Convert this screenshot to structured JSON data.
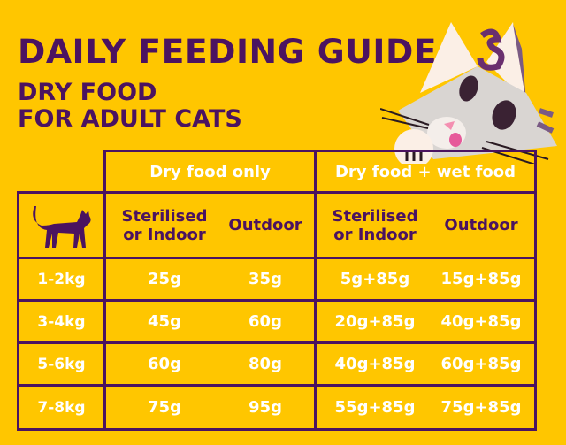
{
  "title": "DAILY FEEDING GUIDE",
  "subtitle_line1": "DRY FOOD",
  "subtitle_line2": "FOR ADULT CATS",
  "colors": {
    "background": "#FFC600",
    "accent": "#4B1360",
    "value_text": "#FFFFFF"
  },
  "icons": {
    "header": "cat-silhouette-icon",
    "mascot": "cat-mascot-illustration"
  },
  "table": {
    "groups": [
      "Dry food only",
      "Dry food + wet food"
    ],
    "subheaders": [
      "Sterilised or Indoor",
      "Outdoor",
      "Sterilised or Indoor",
      "Outdoor"
    ],
    "rows": [
      {
        "weight": "1-2kg",
        "values": [
          "25g",
          "35g",
          "5g+85g",
          "15g+85g"
        ]
      },
      {
        "weight": "3-4kg",
        "values": [
          "45g",
          "60g",
          "20g+85g",
          "40g+85g"
        ]
      },
      {
        "weight": "5-6kg",
        "values": [
          "60g",
          "80g",
          "40g+85g",
          "60g+85g"
        ]
      },
      {
        "weight": "7-8kg",
        "values": [
          "75g",
          "95g",
          "55g+85g",
          "75g+85g"
        ]
      }
    ]
  }
}
